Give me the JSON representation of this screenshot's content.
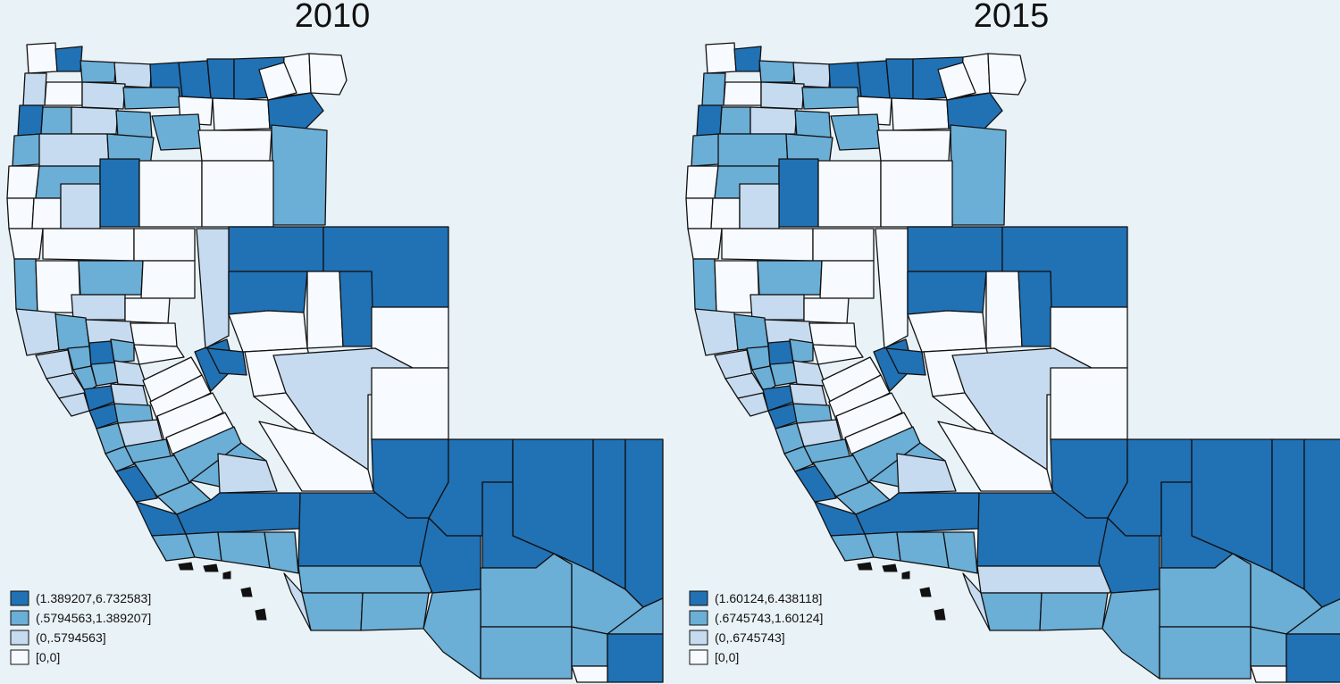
{
  "palette": {
    "c3": "#2171b5",
    "c2": "#6baed6",
    "c1": "#c6dbef",
    "c0": "#f7fbff",
    "background": "#e9f2f6",
    "border": "#111111"
  },
  "maps": [
    {
      "title": "2010",
      "legend": [
        {
          "label": "(1.389207,6.732583]",
          "cls": "c3"
        },
        {
          "label": "(.5794563,1.389207]",
          "cls": "c2"
        },
        {
          "label": "(0,.5794563]",
          "cls": "c1"
        },
        {
          "label": "[0,0]",
          "cls": "c0"
        }
      ]
    },
    {
      "title": "2015",
      "legend": [
        {
          "label": "(1.60124,6.438118]",
          "cls": "c3"
        },
        {
          "label": "(.6745743,1.60124]",
          "cls": "c2"
        },
        {
          "label": "(0,.6745743]",
          "cls": "c1"
        },
        {
          "label": "[0,0]",
          "cls": "c0"
        }
      ]
    }
  ]
}
